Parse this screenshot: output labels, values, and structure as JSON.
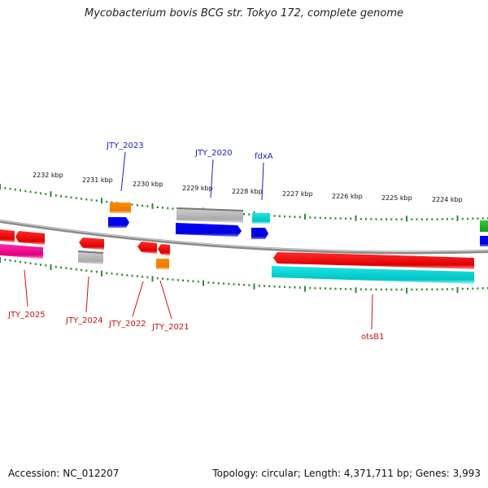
{
  "title": "Mycobacterium bovis BCG str. Tokyo 172, complete genome",
  "footer": {
    "accession": "Accession: NC_012207",
    "summary": "Topology: circular; Length: 4,371,711 bp; Genes: 3,993"
  },
  "colors": {
    "forward_label": "#1a1acc",
    "reverse_label": "#cc1111",
    "tick": "#2e8b2e",
    "backbone": "#7a7a7a"
  },
  "ticks": [
    "2232 kbp",
    "2231 kbp",
    "2230 kbp",
    "2229 kbp",
    "2228 kbp",
    "2227 kbp",
    "2226 kbp",
    "2225 kbp",
    "2224 kbp"
  ],
  "genes_forward": [
    "JTY_2023",
    "JTY_2020",
    "fdxA"
  ],
  "genes_reverse": [
    "JTY_2025",
    "JTY_2024",
    "JTY_2022",
    "JTY_2021",
    "otsB1"
  ]
}
